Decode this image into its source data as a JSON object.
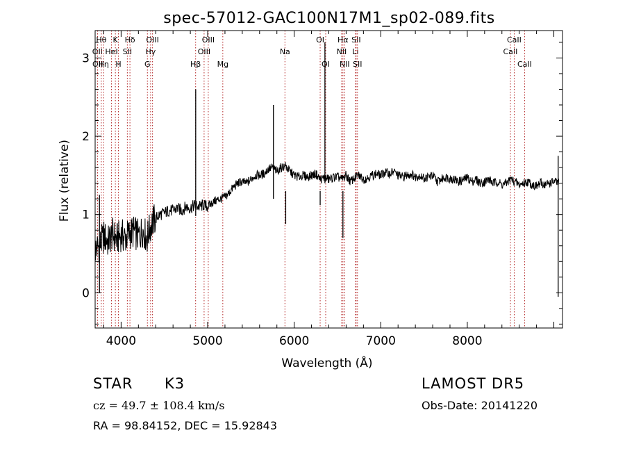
{
  "chart_data": {
    "type": "line",
    "title": "spec-57012-GAC100N17M1_sp02-089.fits",
    "xlabel": "Wavelength (Å)",
    "ylabel": "Flux (relative)",
    "xlim": [
      3700,
      9100
    ],
    "ylim": [
      -0.45,
      3.35
    ],
    "x_ticks": [
      "4000",
      "5000",
      "6000",
      "7000",
      "8000"
    ],
    "y_ticks": [
      "0",
      "1",
      "2",
      "3"
    ],
    "series": [
      {
        "x": [
          3700,
          3750,
          3800,
          3850,
          3900,
          3950,
          4000,
          4050,
          4100,
          4150,
          4200,
          4250,
          4300,
          4350,
          4400,
          4450,
          4500,
          4550,
          4600,
          4650,
          4700,
          4750,
          4800,
          4850,
          4900,
          4950,
          5000,
          5050,
          5100,
          5150,
          5200,
          5250,
          5300,
          5350,
          5400,
          5450,
          5500,
          5550,
          5600,
          5650,
          5700,
          5750,
          5800,
          5850,
          5900,
          5950,
          6000,
          6050,
          6100,
          6150,
          6200,
          6250,
          6300,
          6350,
          6400,
          6450,
          6500,
          6550,
          6600,
          6650,
          6700,
          6750,
          6800,
          6850,
          6900,
          6950,
          7000,
          7050,
          7100,
          7150,
          7200,
          7250,
          7300,
          7350,
          7400,
          7450,
          7500,
          7550,
          7600,
          7650,
          7700,
          7750,
          7800,
          7850,
          7900,
          7950,
          8000,
          8050,
          8100,
          8150,
          8200,
          8250,
          8300,
          8350,
          8400,
          8450,
          8500,
          8550,
          8600,
          8650,
          8700,
          8750,
          8800,
          8850,
          8900,
          8950,
          9000,
          9050,
          9100
        ],
        "y": [
          0.55,
          0.6,
          0.72,
          0.65,
          0.75,
          0.68,
          0.74,
          0.7,
          0.76,
          0.78,
          0.72,
          0.8,
          0.7,
          0.88,
          0.95,
          1.0,
          1.02,
          1.05,
          1.05,
          1.08,
          1.05,
          1.1,
          1.08,
          1.12,
          1.1,
          1.12,
          1.1,
          1.15,
          1.18,
          1.2,
          1.22,
          1.28,
          1.35,
          1.4,
          1.42,
          1.4,
          1.45,
          1.5,
          1.5,
          1.52,
          1.58,
          1.6,
          1.55,
          1.6,
          1.62,
          1.55,
          1.5,
          1.48,
          1.5,
          1.48,
          1.5,
          1.52,
          1.45,
          1.47,
          1.45,
          1.47,
          1.48,
          1.45,
          1.5,
          1.42,
          1.47,
          1.5,
          1.45,
          1.47,
          1.5,
          1.52,
          1.5,
          1.54,
          1.52,
          1.55,
          1.5,
          1.48,
          1.5,
          1.52,
          1.48,
          1.5,
          1.46,
          1.48,
          1.5,
          1.42,
          1.45,
          1.48,
          1.46,
          1.45,
          1.42,
          1.44,
          1.47,
          1.42,
          1.45,
          1.4,
          1.42,
          1.45,
          1.4,
          1.42,
          1.38,
          1.4,
          1.45,
          1.42,
          1.38,
          1.4,
          1.42,
          1.38,
          1.36,
          1.4,
          1.38,
          1.4,
          1.42,
          1.4,
          1.38
        ]
      }
    ],
    "grid": false,
    "line_marker_color": "#b22222",
    "line_markers": [
      {
        "wavelength": 3727,
        "label": "OII",
        "row": 2
      },
      {
        "wavelength": 3729,
        "label": "OII",
        "row": 3
      },
      {
        "wavelength": 3771,
        "label": "Hθ",
        "row": 1
      },
      {
        "wavelength": 3798,
        "label": "Hη",
        "row": 3
      },
      {
        "wavelength": 3889,
        "label": "HeI",
        "row": 2
      },
      {
        "wavelength": 3934,
        "label": "K",
        "row": 1
      },
      {
        "wavelength": 3969,
        "label": "H",
        "row": 3
      },
      {
        "wavelength": 4072,
        "label": "SII",
        "row": 2
      },
      {
        "wavelength": 4102,
        "label": "Hδ",
        "row": 1
      },
      {
        "wavelength": 4304,
        "label": "G",
        "row": 3
      },
      {
        "wavelength": 4341,
        "label": "Hγ",
        "row": 2
      },
      {
        "wavelength": 4363,
        "label": "OIII",
        "row": 1
      },
      {
        "wavelength": 4861,
        "label": "Hβ",
        "row": 3
      },
      {
        "wavelength": 4959,
        "label": "OIII",
        "row": 2
      },
      {
        "wavelength": 5007,
        "label": "OIII",
        "row": 1
      },
      {
        "wavelength": 5175,
        "label": "Mg",
        "row": 3
      },
      {
        "wavelength": 5893,
        "label": "Na",
        "row": 2
      },
      {
        "wavelength": 6300,
        "label": "OI",
        "row": 1
      },
      {
        "wavelength": 6364,
        "label": "OI",
        "row": 3
      },
      {
        "wavelength": 6548,
        "label": "NII",
        "row": 2
      },
      {
        "wavelength": 6563,
        "label": "Hα",
        "row": 1
      },
      {
        "wavelength": 6583,
        "label": "NII",
        "row": 3
      },
      {
        "wavelength": 6708,
        "label": "Li",
        "row": 2
      },
      {
        "wavelength": 6716,
        "label": "SII",
        "row": 1
      },
      {
        "wavelength": 6731,
        "label": "SII",
        "row": 3
      },
      {
        "wavelength": 8498,
        "label": "CaII",
        "row": 2
      },
      {
        "wavelength": 8542,
        "label": "CaII",
        "row": 1
      },
      {
        "wavelength": 8662,
        "label": "CaII",
        "row": 3
      }
    ],
    "spikes": [
      {
        "wavelength": 4862,
        "peak": 2.6,
        "dip": 0.98
      },
      {
        "wavelength": 5760,
        "peak": 2.4,
        "dip": 1.2
      },
      {
        "wavelength": 5902,
        "peak": 1.3,
        "dip": 0.88
      },
      {
        "wavelength": 6355,
        "peak": 3.2,
        "dip": 1.4
      },
      {
        "wavelength": 6300,
        "peak": 1.3,
        "dip": 1.12
      },
      {
        "wavelength": 6563,
        "peak": 1.3,
        "dip": 0.7
      },
      {
        "wavelength": 9050,
        "peak": 1.75,
        "dip": -0.05
      },
      {
        "wavelength": 3750,
        "peak": 1.25,
        "dip": 0.0
      }
    ]
  },
  "info": {
    "object_type": "STAR",
    "subclass": "K3",
    "survey": "LAMOST  DR5",
    "redshift_text": "cz = 49.7 ± 108.4 km/s",
    "obs_date": "Obs-Date: 20141220",
    "coords": "RA =  98.84152, DEC =  15.92843"
  }
}
